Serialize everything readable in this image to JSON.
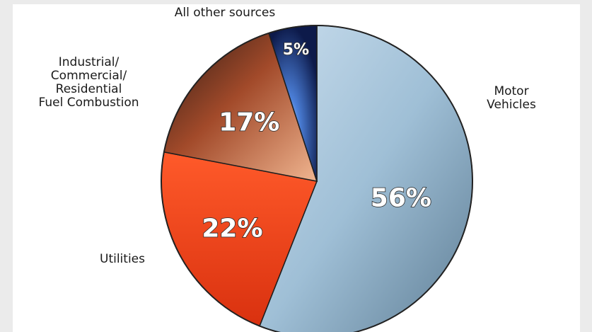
{
  "chart_data": {
    "type": "pie",
    "title": "",
    "slices": [
      {
        "label": "Motor Vehicles",
        "value": 56,
        "display": "56%",
        "color": "#a9c7db"
      },
      {
        "label": "Utilities",
        "value": 22,
        "display": "22%",
        "color": "#e8401c"
      },
      {
        "label": "Industrial/ Commercial/ Residential Fuel Combustion",
        "value": 17,
        "display": "17%",
        "color": "#c56a45"
      },
      {
        "label": "All other sources",
        "value": 5,
        "display": "5%",
        "color": "#3a5fb0"
      }
    ]
  }
}
